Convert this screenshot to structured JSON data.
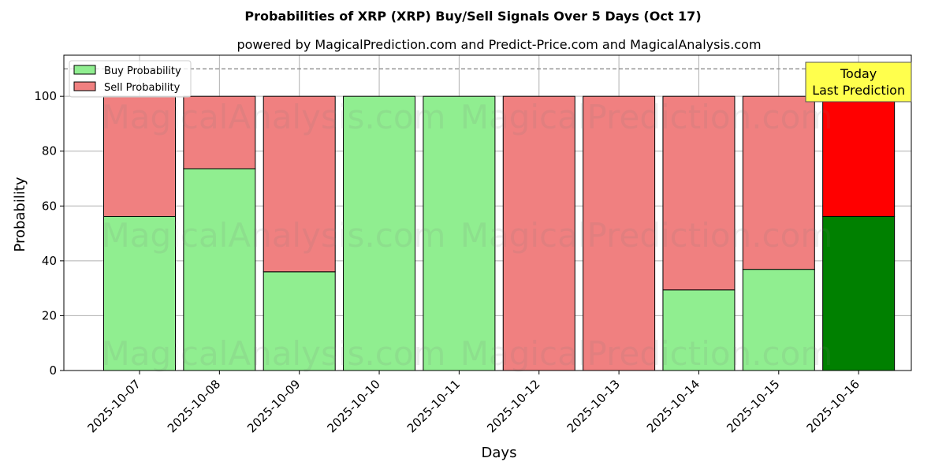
{
  "chart_data": {
    "type": "bar",
    "stacked": true,
    "title": "Probabilities of XRP (XRP) Buy/Sell Signals Over 5 Days (Oct 17)",
    "subtitle": "powered by MagicalPrediction.com and Predict-Price.com and MagicalAnalysis.com",
    "xlabel": "Days",
    "ylabel": "Probability",
    "ylim": [
      0,
      115
    ],
    "yticks": [
      0,
      20,
      40,
      60,
      80,
      100
    ],
    "grid": true,
    "legend_position": "top-left",
    "categories": [
      "2025-10-07",
      "2025-10-08",
      "2025-10-09",
      "2025-10-10",
      "2025-10-11",
      "2025-10-12",
      "2025-10-13",
      "2025-10-14",
      "2025-10-15",
      "2025-10-16"
    ],
    "series": [
      {
        "name": "Buy Probability",
        "color": "#90ee90",
        "highlight_color": "#008000",
        "values": [
          56.2,
          73.6,
          36.0,
          100,
          100,
          0,
          0,
          29.4,
          36.9,
          56.2
        ]
      },
      {
        "name": "Sell Probability",
        "color": "#f08080",
        "highlight_color": "#ff0000",
        "values": [
          43.8,
          26.4,
          64.0,
          0,
          0,
          100,
          100,
          70.6,
          63.1,
          43.8
        ]
      }
    ],
    "highlight_index": 9,
    "reference_line": {
      "y": 110,
      "style": "dashed",
      "color": "#808080"
    },
    "annotation": {
      "lines": [
        "Today",
        "Last Prediction"
      ],
      "background": "#ffff4d"
    },
    "watermarks": [
      "MagicalAnalysis.com",
      "MagicalPrediction.com"
    ]
  }
}
